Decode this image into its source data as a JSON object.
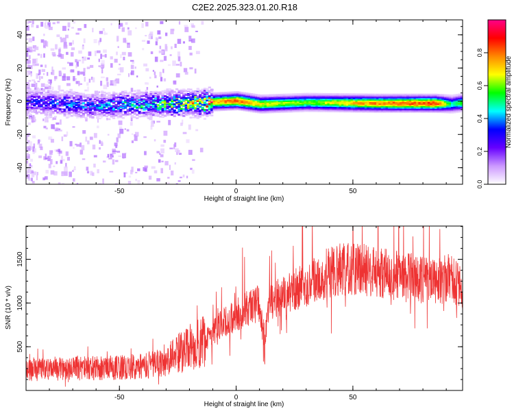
{
  "title": "C2E2.2025.323.01.20.R18",
  "chart_data": [
    {
      "type": "heatmap",
      "xlabel": "Height of straight line (km)",
      "ylabel": "Frequency (Hz)",
      "xlim": [
        -90,
        97
      ],
      "ylim": [
        -50,
        49
      ],
      "xticks": [
        -50,
        0,
        50
      ],
      "yticks": [
        -40,
        -20,
        0,
        20,
        40
      ],
      "colorbar": {
        "label": "Normalized spectral amplitude",
        "range": [
          0,
          1
        ],
        "ticks": [
          "0.0",
          "0.2",
          "0.4",
          "0.6",
          "0.8"
        ],
        "tick_values": [
          0.0,
          0.2,
          0.4,
          0.6,
          0.8
        ],
        "colors": [
          "#ffffff",
          "#cc99ff",
          "#6600ff",
          "#0000ff",
          "#00ffff",
          "#00ff00",
          "#ffff00",
          "#ff8800",
          "#ff0000",
          "#ff0088"
        ]
      },
      "band": {
        "center_freq_points": [
          [
            -90,
            0
          ],
          [
            -60,
            -3
          ],
          [
            -40,
            -2
          ],
          [
            -15,
            -1
          ],
          [
            0,
            0
          ],
          [
            10,
            -2
          ],
          [
            30,
            -1
          ],
          [
            60,
            -1.5
          ],
          [
            85,
            -1.5
          ],
          [
            92,
            -2
          ],
          [
            97,
            -1
          ]
        ],
        "peak_amplitude_points": [
          [
            -90,
            0.28
          ],
          [
            -60,
            0.35
          ],
          [
            -35,
            0.45
          ],
          [
            -15,
            0.7
          ],
          [
            0,
            0.85
          ],
          [
            10,
            0.7
          ],
          [
            30,
            0.6
          ],
          [
            55,
            0.78
          ],
          [
            85,
            0.88
          ],
          [
            92,
            0.5
          ],
          [
            97,
            0.6
          ]
        ]
      }
    },
    {
      "type": "line",
      "xlabel": "Height of straight line (km)",
      "ylabel": "SNR (10 * v/v)",
      "xlim": [
        -90,
        97
      ],
      "ylim": [
        0,
        1880
      ],
      "xticks": [
        -50,
        0,
        50
      ],
      "yticks": [
        500,
        1000,
        1500
      ],
      "color": "#ee3333",
      "series": [
        {
          "name": "SNR",
          "trend_points": [
            [
              -90,
              230
            ],
            [
              -70,
              250
            ],
            [
              -50,
              260
            ],
            [
              -35,
              300
            ],
            [
              -25,
              420
            ],
            [
              -15,
              560
            ],
            [
              -5,
              780
            ],
            [
              5,
              940
            ],
            [
              10,
              1000
            ],
            [
              12,
              500
            ],
            [
              14,
              1000
            ],
            [
              25,
              1150
            ],
            [
              35,
              1300
            ],
            [
              45,
              1390
            ],
            [
              55,
              1380
            ],
            [
              70,
              1310
            ],
            [
              85,
              1250
            ],
            [
              92,
              1280
            ],
            [
              97,
              1150
            ]
          ]
        }
      ]
    }
  ]
}
